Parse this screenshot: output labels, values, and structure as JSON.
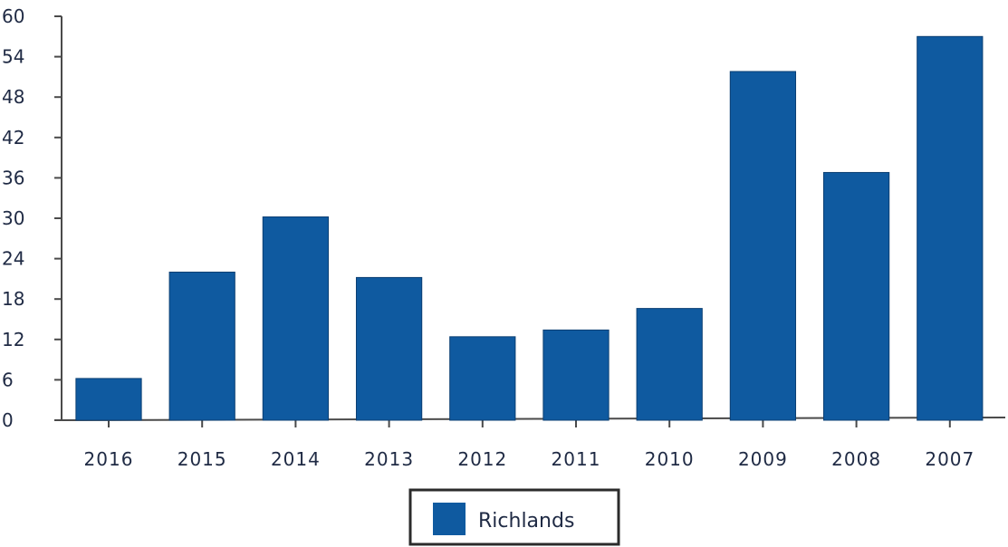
{
  "chart_data": {
    "type": "bar",
    "title": "",
    "xlabel": "",
    "ylabel": "",
    "categories": [
      "2016",
      "2015",
      "2014",
      "2013",
      "2012",
      "2011",
      "2010",
      "2009",
      "2008",
      "2007"
    ],
    "series": [
      {
        "name": "Richlands",
        "color": "#0f5aa0",
        "values": [
          6.2,
          22,
          30.2,
          21.2,
          12.4,
          13.4,
          16.6,
          51.8,
          36.8,
          57
        ]
      }
    ],
    "yticks": [
      0,
      6,
      12,
      18,
      24,
      30,
      36,
      42,
      48,
      54,
      60
    ],
    "ylim": [
      0,
      60
    ],
    "grid": false,
    "legend_position": "bottom-center"
  }
}
